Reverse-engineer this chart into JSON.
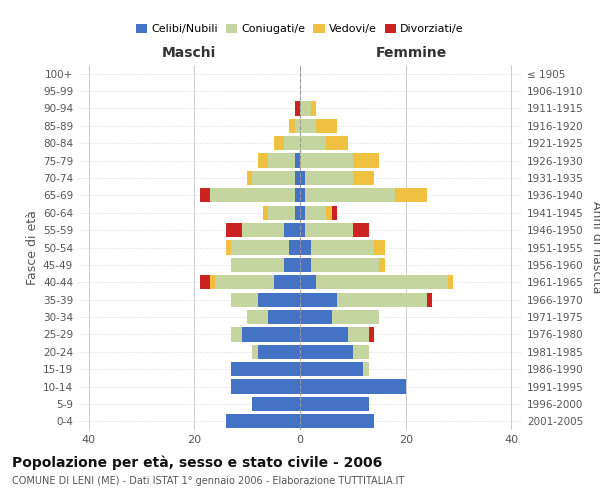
{
  "age_groups": [
    "0-4",
    "5-9",
    "10-14",
    "15-19",
    "20-24",
    "25-29",
    "30-34",
    "35-39",
    "40-44",
    "45-49",
    "50-54",
    "55-59",
    "60-64",
    "65-69",
    "70-74",
    "75-79",
    "80-84",
    "85-89",
    "90-94",
    "95-99",
    "100+"
  ],
  "birth_years": [
    "2001-2005",
    "1996-2000",
    "1991-1995",
    "1986-1990",
    "1981-1985",
    "1976-1980",
    "1971-1975",
    "1966-1970",
    "1961-1965",
    "1956-1960",
    "1951-1955",
    "1946-1950",
    "1941-1945",
    "1936-1940",
    "1931-1935",
    "1926-1930",
    "1921-1925",
    "1916-1920",
    "1911-1915",
    "1906-1910",
    "≤ 1905"
  ],
  "colors": {
    "celibi": "#4472c4",
    "coniugati": "#c5d5a0",
    "vedovi": "#f0c040",
    "divorziati": "#cc2222"
  },
  "maschi": {
    "celibi": [
      14,
      9,
      13,
      13,
      8,
      11,
      6,
      8,
      5,
      3,
      2,
      3,
      1,
      1,
      1,
      1,
      0,
      0,
      0,
      0,
      0
    ],
    "coniugati": [
      0,
      0,
      0,
      0,
      1,
      2,
      4,
      5,
      11,
      10,
      11,
      8,
      5,
      16,
      8,
      5,
      3,
      1,
      0,
      0,
      0
    ],
    "vedovi": [
      0,
      0,
      0,
      0,
      0,
      0,
      0,
      0,
      1,
      0,
      1,
      0,
      1,
      0,
      1,
      2,
      2,
      1,
      0,
      0,
      0
    ],
    "divorziati": [
      0,
      0,
      0,
      0,
      0,
      0,
      0,
      0,
      2,
      0,
      0,
      3,
      0,
      2,
      0,
      0,
      0,
      0,
      1,
      0,
      0
    ]
  },
  "femmine": {
    "celibi": [
      14,
      13,
      20,
      12,
      10,
      9,
      6,
      7,
      3,
      2,
      2,
      1,
      1,
      1,
      1,
      0,
      0,
      0,
      0,
      0,
      0
    ],
    "coniugati": [
      0,
      0,
      0,
      1,
      3,
      4,
      9,
      17,
      25,
      13,
      12,
      9,
      4,
      17,
      9,
      10,
      5,
      3,
      2,
      0,
      0
    ],
    "vedovi": [
      0,
      0,
      0,
      0,
      0,
      0,
      0,
      0,
      1,
      1,
      2,
      0,
      1,
      6,
      4,
      5,
      4,
      4,
      1,
      0,
      0
    ],
    "divorziati": [
      0,
      0,
      0,
      0,
      0,
      1,
      0,
      1,
      0,
      0,
      0,
      3,
      1,
      0,
      0,
      0,
      0,
      0,
      0,
      0,
      0
    ]
  },
  "xlim": 42,
  "xtick_step": 20,
  "title": "Popolazione per età, sesso e stato civile - 2006",
  "subtitle": "COMUNE DI LENI (ME) - Dati ISTAT 1° gennaio 2006 - Elaborazione TUTTITALIA.IT",
  "ylabel_left": "Fasce di età",
  "ylabel_right": "Anni di nascita",
  "maschi_label": "Maschi",
  "femmine_label": "Femmine",
  "legend_labels": [
    "Celibi/Nubili",
    "Coniugati/e",
    "Vedovi/e",
    "Divorziati/e"
  ],
  "bg_color": "#ffffff",
  "grid_color": "#cccccc",
  "text_color": "#555555",
  "title_color": "#111111"
}
